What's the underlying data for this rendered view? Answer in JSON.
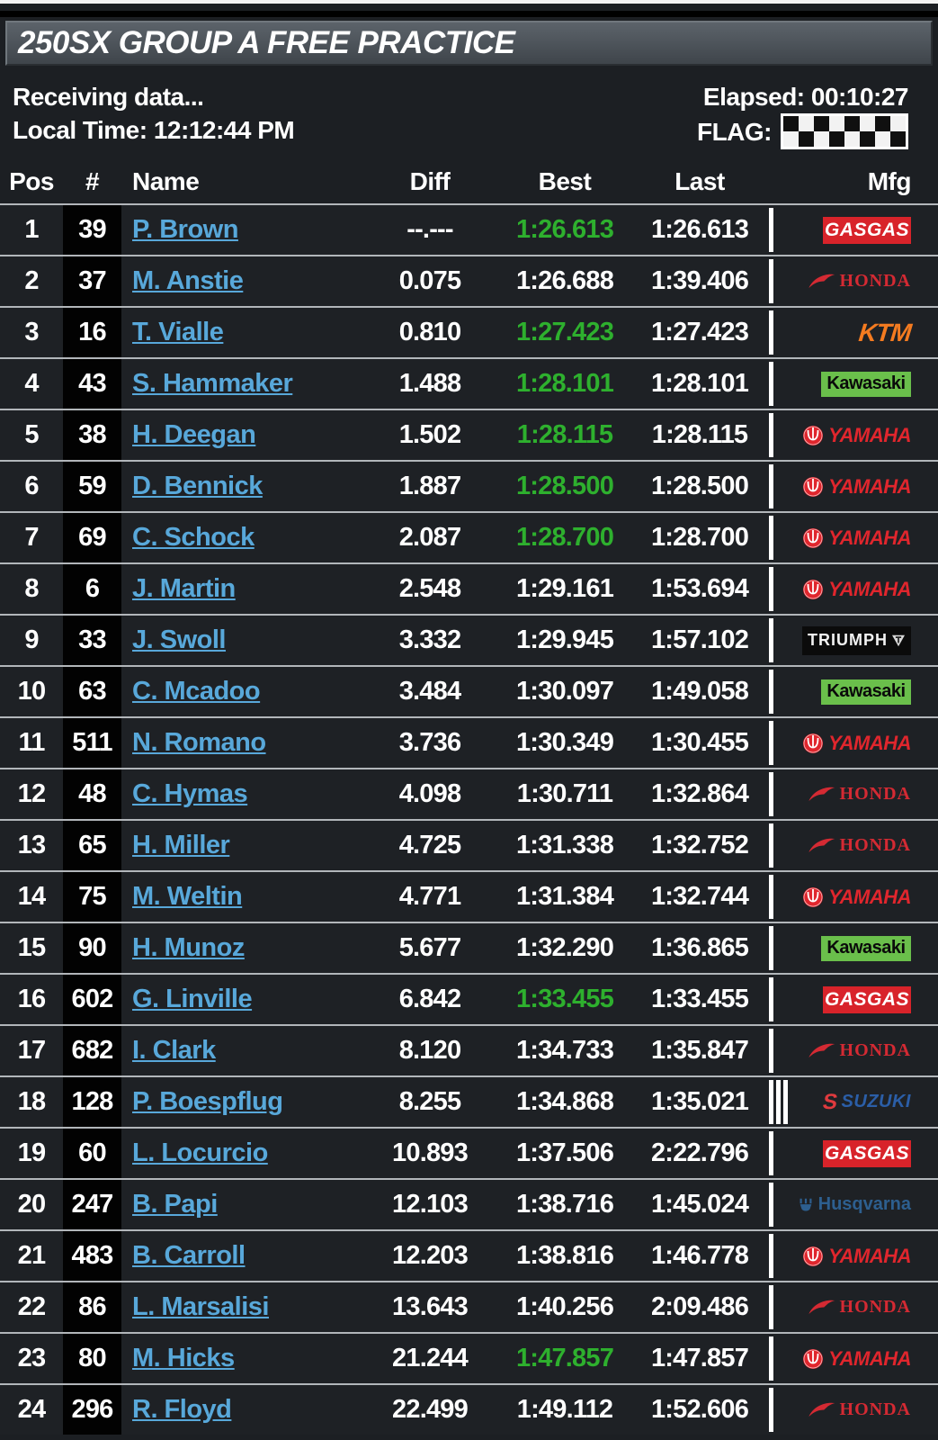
{
  "title": "250SX GROUP A FREE PRACTICE",
  "status": {
    "receiving": "Receiving data...",
    "local_time": "Local Time: 12:12:44 PM",
    "elapsed": "Elapsed: 00:10:27",
    "flag_label": "FLAG:",
    "flag_type": "checkered"
  },
  "columns": {
    "pos": "Pos",
    "number": "#",
    "name": "Name",
    "diff": "Diff",
    "best": "Best",
    "last": "Last",
    "mfg": "Mfg"
  },
  "colors": {
    "best_green": "#2eb02e",
    "name_link_blue": "#58a8da",
    "row_separator": "#b2b6ba",
    "row_background": "#1e2125",
    "number_column_background": "#020202",
    "gasgas_red": "#d8232a",
    "kawasaki_green": "#6abf4b",
    "ktm_orange": "#f47b20",
    "honda_red": "#d42a33",
    "yamaha_red": "#e0262d",
    "suzuki_blue": "#2b5ea7",
    "husqvarna_blue": "#2d5f8f"
  },
  "mfg_logos": {
    "gasgas": {
      "label": "GASGAS"
    },
    "honda": {
      "label": "HONDA"
    },
    "ktm": {
      "label": "KTM"
    },
    "kawasaki": {
      "label": "Kawasaki"
    },
    "yamaha": {
      "label": "YAMAHA"
    },
    "triumph": {
      "label": "TRIUMPH"
    },
    "suzuki": {
      "label": "SUZUKI"
    },
    "husqvarna": {
      "label": "Husqvarna"
    }
  },
  "rows": [
    {
      "pos": "1",
      "num": "39",
      "name": "P. Brown",
      "diff": "--.---",
      "best": "1:26.613",
      "best_green": true,
      "last": "1:26.613",
      "mfg": "gasgas",
      "bars": 1
    },
    {
      "pos": "2",
      "num": "37",
      "name": "M. Anstie",
      "diff": "0.075",
      "best": "1:26.688",
      "best_green": false,
      "last": "1:39.406",
      "mfg": "honda",
      "bars": 1
    },
    {
      "pos": "3",
      "num": "16",
      "name": "T. Vialle",
      "diff": "0.810",
      "best": "1:27.423",
      "best_green": true,
      "last": "1:27.423",
      "mfg": "ktm",
      "bars": 1
    },
    {
      "pos": "4",
      "num": "43",
      "name": "S. Hammaker",
      "diff": "1.488",
      "best": "1:28.101",
      "best_green": true,
      "last": "1:28.101",
      "mfg": "kawasaki",
      "bars": 1
    },
    {
      "pos": "5",
      "num": "38",
      "name": "H. Deegan",
      "diff": "1.502",
      "best": "1:28.115",
      "best_green": true,
      "last": "1:28.115",
      "mfg": "yamaha",
      "bars": 1
    },
    {
      "pos": "6",
      "num": "59",
      "name": "D. Bennick",
      "diff": "1.887",
      "best": "1:28.500",
      "best_green": true,
      "last": "1:28.500",
      "mfg": "yamaha",
      "bars": 1
    },
    {
      "pos": "7",
      "num": "69",
      "name": "C. Schock",
      "diff": "2.087",
      "best": "1:28.700",
      "best_green": true,
      "last": "1:28.700",
      "mfg": "yamaha",
      "bars": 1
    },
    {
      "pos": "8",
      "num": "6",
      "name": "J. Martin",
      "diff": "2.548",
      "best": "1:29.161",
      "best_green": false,
      "last": "1:53.694",
      "mfg": "yamaha",
      "bars": 1
    },
    {
      "pos": "9",
      "num": "33",
      "name": "J. Swoll",
      "diff": "3.332",
      "best": "1:29.945",
      "best_green": false,
      "last": "1:57.102",
      "mfg": "triumph",
      "bars": 1
    },
    {
      "pos": "10",
      "num": "63",
      "name": "C. Mcadoo",
      "diff": "3.484",
      "best": "1:30.097",
      "best_green": false,
      "last": "1:49.058",
      "mfg": "kawasaki",
      "bars": 1
    },
    {
      "pos": "11",
      "num": "511",
      "name": "N. Romano",
      "diff": "3.736",
      "best": "1:30.349",
      "best_green": false,
      "last": "1:30.455",
      "mfg": "yamaha",
      "bars": 1
    },
    {
      "pos": "12",
      "num": "48",
      "name": "C. Hymas",
      "diff": "4.098",
      "best": "1:30.711",
      "best_green": false,
      "last": "1:32.864",
      "mfg": "honda",
      "bars": 1
    },
    {
      "pos": "13",
      "num": "65",
      "name": "H. Miller",
      "diff": "4.725",
      "best": "1:31.338",
      "best_green": false,
      "last": "1:32.752",
      "mfg": "honda",
      "bars": 1
    },
    {
      "pos": "14",
      "num": "75",
      "name": "M. Weltin",
      "diff": "4.771",
      "best": "1:31.384",
      "best_green": false,
      "last": "1:32.744",
      "mfg": "yamaha",
      "bars": 1
    },
    {
      "pos": "15",
      "num": "90",
      "name": "H. Munoz",
      "diff": "5.677",
      "best": "1:32.290",
      "best_green": false,
      "last": "1:36.865",
      "mfg": "kawasaki",
      "bars": 1
    },
    {
      "pos": "16",
      "num": "602",
      "name": "G. Linville",
      "diff": "6.842",
      "best": "1:33.455",
      "best_green": true,
      "last": "1:33.455",
      "mfg": "gasgas",
      "bars": 1
    },
    {
      "pos": "17",
      "num": "682",
      "name": "I. Clark",
      "diff": "8.120",
      "best": "1:34.733",
      "best_green": false,
      "last": "1:35.847",
      "mfg": "honda",
      "bars": 1
    },
    {
      "pos": "18",
      "num": "128",
      "name": "P. Boespflug",
      "diff": "8.255",
      "best": "1:34.868",
      "best_green": false,
      "last": "1:35.021",
      "mfg": "suzuki",
      "bars": 3
    },
    {
      "pos": "19",
      "num": "60",
      "name": "L. Locurcio",
      "diff": "10.893",
      "best": "1:37.506",
      "best_green": false,
      "last": "2:22.796",
      "mfg": "gasgas",
      "bars": 1
    },
    {
      "pos": "20",
      "num": "247",
      "name": "B. Papi",
      "diff": "12.103",
      "best": "1:38.716",
      "best_green": false,
      "last": "1:45.024",
      "mfg": "husqvarna",
      "bars": 1
    },
    {
      "pos": "21",
      "num": "483",
      "name": "B. Carroll",
      "diff": "12.203",
      "best": "1:38.816",
      "best_green": false,
      "last": "1:46.778",
      "mfg": "yamaha",
      "bars": 1
    },
    {
      "pos": "22",
      "num": "86",
      "name": "L. Marsalisi",
      "diff": "13.643",
      "best": "1:40.256",
      "best_green": false,
      "last": "2:09.486",
      "mfg": "honda",
      "bars": 1
    },
    {
      "pos": "23",
      "num": "80",
      "name": "M. Hicks",
      "diff": "21.244",
      "best": "1:47.857",
      "best_green": true,
      "last": "1:47.857",
      "mfg": "yamaha",
      "bars": 1
    },
    {
      "pos": "24",
      "num": "296",
      "name": "R. Floyd",
      "diff": "22.499",
      "best": "1:49.112",
      "best_green": false,
      "last": "1:52.606",
      "mfg": "honda",
      "bars": 1
    }
  ]
}
